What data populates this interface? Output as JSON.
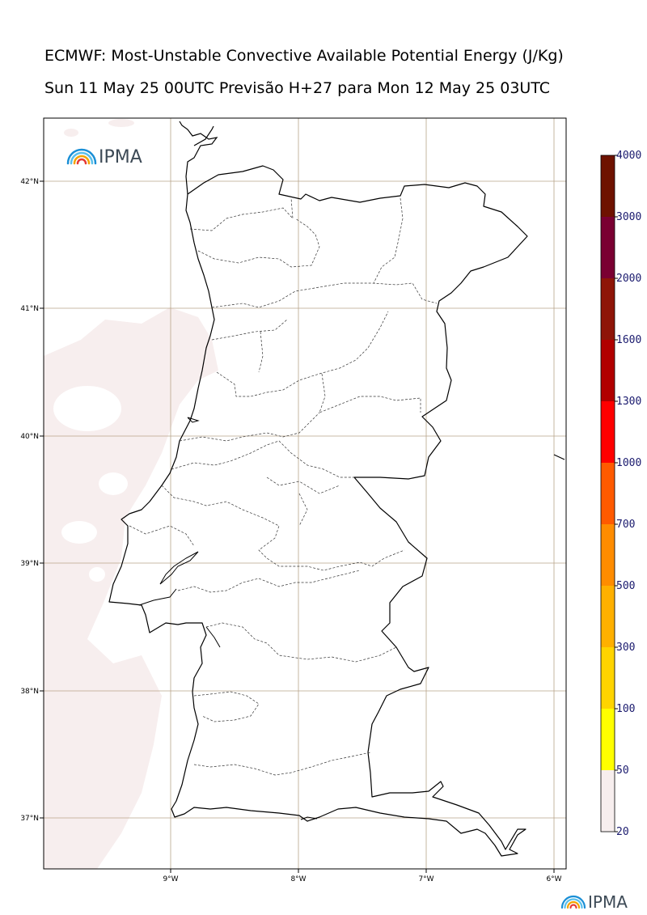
{
  "header": {
    "title": "ECMWF: Most-Unstable Convective Available Potential Energy (J/Kg)",
    "subtitle": "Sun 11 May 25 00UTC Previsão H+27 para Mon 12 May 25 03UTC"
  },
  "logos": {
    "map_logo_text": "IPMA",
    "footer_logo_text": "IPMA"
  },
  "map": {
    "lat_ticks": [
      "42°N",
      "41°N",
      "40°N",
      "39°N",
      "38°N",
      "37°N"
    ],
    "lon_ticks": [
      "9°W",
      "8°W",
      "7°W",
      "6°W"
    ],
    "land_color": "#ffffff",
    "border_color": "#000000",
    "grid_color": "#b8a58a",
    "cape_field_color": "#f7eeee"
  },
  "colorbar": {
    "levels": [
      "4000",
      "3000",
      "2000",
      "1600",
      "1300",
      "1000",
      "700",
      "500",
      "300",
      "100",
      "50",
      "20"
    ],
    "colors": [
      "#6e1200",
      "#7a0032",
      "#8e1508",
      "#b10000",
      "#ff0000",
      "#ff5a00",
      "#ff8c00",
      "#ffb000",
      "#ffd400",
      "#ffff00",
      "#f7eeee"
    ]
  }
}
